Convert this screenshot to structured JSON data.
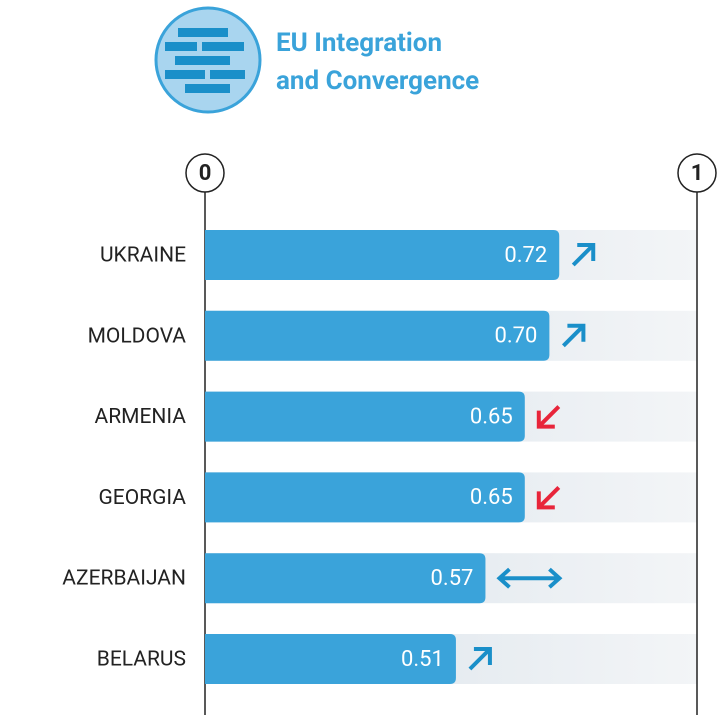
{
  "chart_data": {
    "type": "bar",
    "orientation": "horizontal",
    "title": [
      "EU Integration",
      "and Convergence"
    ],
    "categories": [
      "UKRAINE",
      "MOLDOVA",
      "ARMENIA",
      "GEORGIA",
      "AZERBAIJAN",
      "BELARUS"
    ],
    "values": [
      0.72,
      0.7,
      0.65,
      0.65,
      0.57,
      0.51
    ],
    "value_labels": [
      "0.72",
      "0.70",
      "0.65",
      "0.65",
      "0.57",
      "0.51"
    ],
    "trends": [
      "up",
      "up",
      "down",
      "down",
      "both",
      "up"
    ],
    "trend_colors": {
      "up": "#1a8fc9",
      "down": "#e8253a",
      "both": "#1a8fc9"
    },
    "color": "#3aa3da",
    "xlim": [
      0,
      1
    ],
    "xticks": [
      0,
      1
    ]
  }
}
